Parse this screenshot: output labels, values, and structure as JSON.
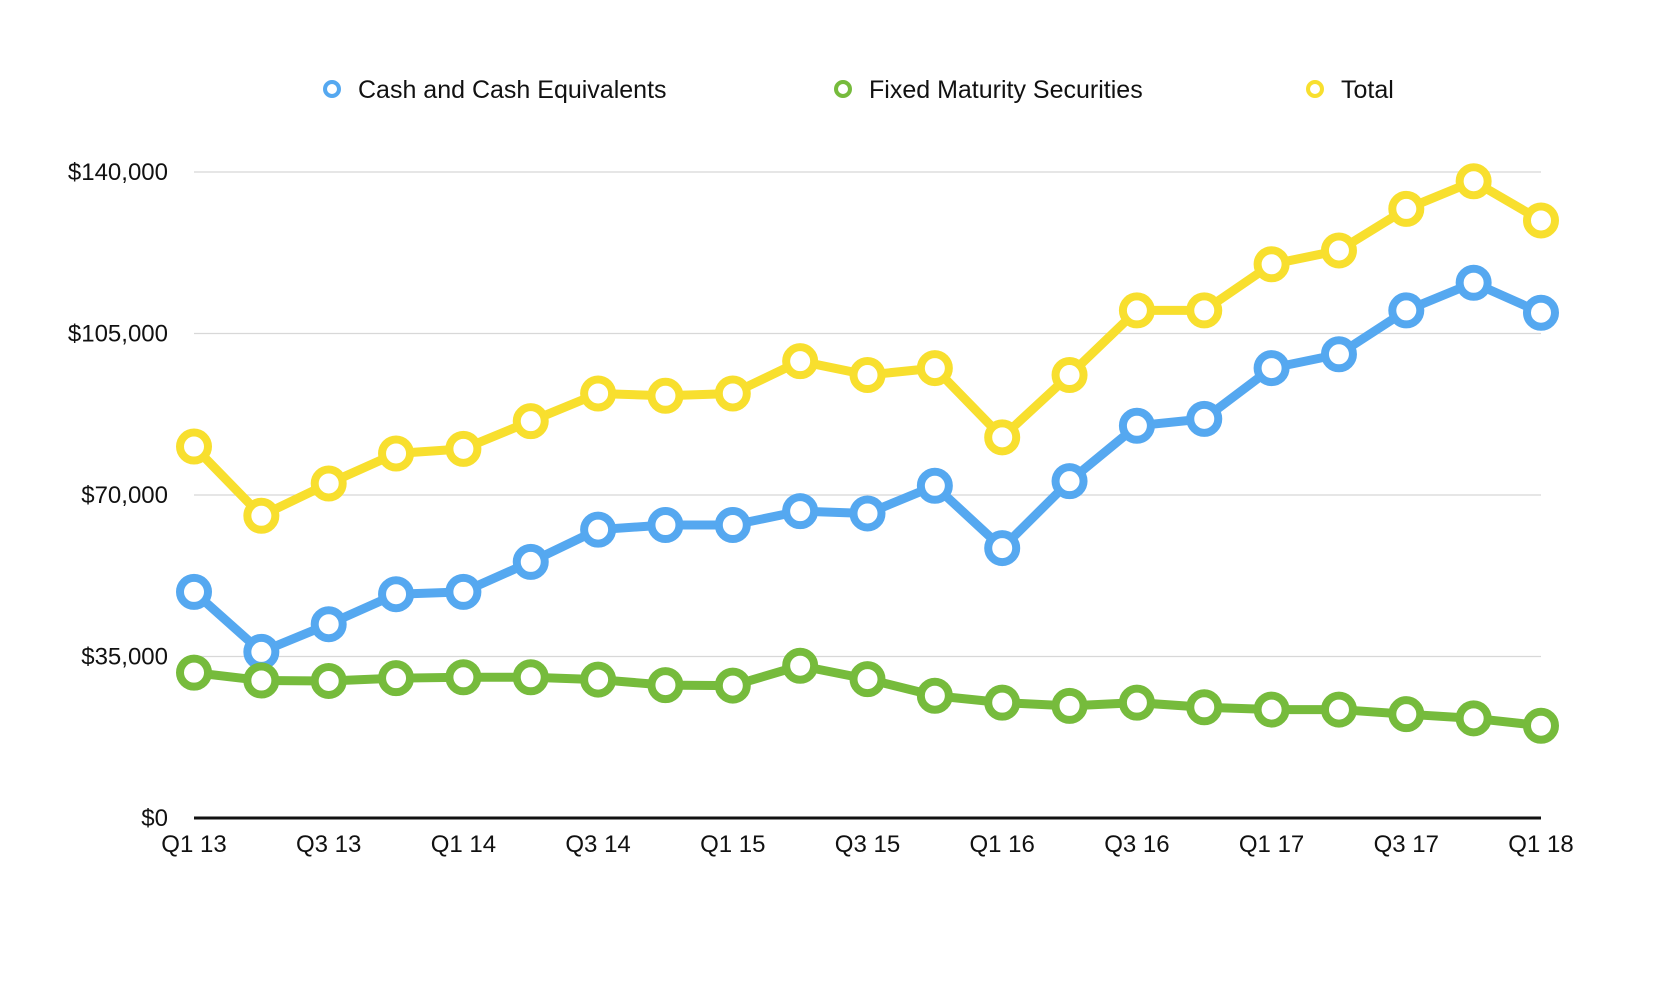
{
  "chart_data": {
    "type": "line",
    "title": "",
    "xlabel": "",
    "ylabel": "",
    "x_axis_type": "category",
    "categories": [
      "Q1 13",
      "Q2 13",
      "Q3 13",
      "Q4 13",
      "Q1 14",
      "Q2 14",
      "Q3 14",
      "Q4 14",
      "Q1 15",
      "Q2 15",
      "Q3 15",
      "Q4 15",
      "Q1 16",
      "Q2 16",
      "Q3 16",
      "Q4 16",
      "Q1 17",
      "Q2 17",
      "Q3 17",
      "Q4 17",
      "Q1 18"
    ],
    "x_tick_labels": [
      "Q1 13",
      "Q3 13",
      "Q1 14",
      "Q3 14",
      "Q1 15",
      "Q3 15",
      "Q1 16",
      "Q3 16",
      "Q1 17",
      "Q3 17",
      "Q1 18"
    ],
    "x_tick_indices": [
      0,
      2,
      4,
      6,
      8,
      10,
      12,
      14,
      16,
      18,
      20
    ],
    "ylim": [
      0,
      140000
    ],
    "y_ticks": [
      0,
      35000,
      70000,
      105000,
      140000
    ],
    "y_tick_labels": [
      "$0",
      "$35,000",
      "$70,000",
      "$105,000",
      "$140,000"
    ],
    "grid": true,
    "legend_position": "top",
    "series": [
      {
        "name": "Cash and Cash Equivalents",
        "color": "#55a8f0",
        "values": [
          49000,
          36000,
          42000,
          48500,
          49000,
          55500,
          62500,
          63500,
          63500,
          66500,
          66000,
          72000,
          58500,
          73000,
          85000,
          86500,
          97500,
          100500,
          110000,
          116000,
          109500
        ]
      },
      {
        "name": "Fixed Maturity Securities",
        "color": "#76bb3c",
        "values": [
          31500,
          29800,
          29700,
          30300,
          30500,
          30500,
          30000,
          28800,
          28700,
          33000,
          30100,
          26500,
          25000,
          24300,
          25000,
          24000,
          23500,
          23500,
          22500,
          21600,
          20000
        ]
      },
      {
        "name": "Total",
        "color": "#f8df2e",
        "values": [
          80500,
          65500,
          72500,
          79000,
          80000,
          86000,
          92000,
          91500,
          92000,
          99000,
          96000,
          97500,
          82500,
          96000,
          110000,
          110000,
          120000,
          123000,
          132000,
          138000,
          129500
        ]
      }
    ]
  }
}
